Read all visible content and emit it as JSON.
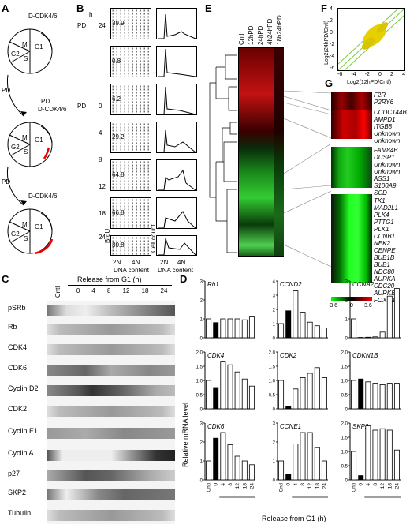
{
  "panels": {
    "A": "A",
    "B": "B",
    "C": "C",
    "D": "D",
    "E": "E",
    "F": "F",
    "G": "G"
  },
  "panelA": {
    "complex": "D-CDK4/6",
    "phases": [
      "M",
      "G1",
      "G2",
      "S"
    ],
    "drug": "PD"
  },
  "panelB": {
    "hour_unit": "h",
    "drug": "PD",
    "times": [
      "24",
      "0",
      "4",
      "8",
      "12",
      "18",
      "24"
    ],
    "percents": [
      "39.9",
      "0.8",
      "6.2",
      "29.2",
      "64.8",
      "66.8",
      "30.8"
    ],
    "xlabel": "DNA content",
    "ylabel_left": "BrdU",
    "ylabel_right": "Cell count",
    "ticks": [
      "2N",
      "4N"
    ]
  },
  "panelC": {
    "header": "Release from G1 (h)",
    "columns": [
      "Cntl",
      "0",
      "4",
      "8",
      "12",
      "18",
      "24"
    ],
    "rows": [
      "pSRb",
      "Rb",
      "CDK4",
      "CDK6",
      "Cyclin D2",
      "CDK2",
      "Cyclin E1",
      "Cyclin A",
      "p27",
      "SKP2",
      "Tubulin"
    ]
  },
  "panelD": {
    "ylabel": "Relative mRNA level",
    "xlabel": "Release from G1 (h)",
    "categories": [
      "Cntl",
      "0",
      "4",
      "8",
      "12",
      "18",
      "24"
    ],
    "genes": [
      {
        "name": "Rb1",
        "values": [
          1,
          0.8,
          1,
          1,
          1,
          0.95,
          1.1
        ],
        "ymax": 3,
        "ticks": [
          "0",
          "1",
          "2",
          "3"
        ]
      },
      {
        "name": "CCND2",
        "values": [
          1,
          1.9,
          3.3,
          1.8,
          1.1,
          0.85,
          0.7
        ],
        "ymax": 4,
        "ticks": [
          "0",
          "1",
          "2",
          "3",
          "4"
        ]
      },
      {
        "name": "CCNA2",
        "values": [
          1,
          0.02,
          0.03,
          0.05,
          0.3,
          2.2,
          2.6
        ],
        "ymax": 3,
        "ticks": [
          "0",
          "1",
          "2",
          "3"
        ]
      },
      {
        "name": "CDK4",
        "values": [
          1,
          0.75,
          1.65,
          1.55,
          1.3,
          1.05,
          0.8
        ],
        "ymax": 2,
        "ticks": [
          "0",
          "0.5",
          "1.0",
          "1.5",
          "2.0"
        ]
      },
      {
        "name": "CDK2",
        "values": [
          1,
          0.1,
          0.7,
          1.1,
          1.25,
          1.45,
          1.1
        ],
        "ymax": 2,
        "ticks": [
          "0",
          "0.5",
          "1.0",
          "1.5",
          "2.0"
        ]
      },
      {
        "name": "CDKN1B",
        "values": [
          1,
          1.05,
          0.95,
          0.9,
          0.85,
          0.9,
          0.9
        ],
        "ymax": 2,
        "ticks": [
          "0",
          "0.5",
          "1.0",
          "1.5",
          "2.0"
        ]
      },
      {
        "name": "CDK6",
        "values": [
          1,
          2.2,
          2.5,
          1.85,
          1.25,
          1.0,
          0.8
        ],
        "ymax": 3,
        "ticks": [
          "0",
          "1",
          "2",
          "3"
        ]
      },
      {
        "name": "CCNE1",
        "values": [
          1,
          0.3,
          1.9,
          2.5,
          2.5,
          1.7,
          1.0
        ],
        "ymax": 3,
        "ticks": [
          "0",
          "1",
          "2",
          "3"
        ]
      },
      {
        "name": "SKP2",
        "values": [
          1,
          0.15,
          1.9,
          1.75,
          1.8,
          1.75,
          1.05
        ],
        "ymax": 2,
        "ticks": [
          "0",
          "0.5",
          "1.0",
          "1.5",
          "2.0"
        ]
      }
    ]
  },
  "panelE": {
    "columns": [
      "Cntl",
      "12hPD",
      "24hPD",
      "4h24hPD",
      "18h24hPD"
    ]
  },
  "panelF": {
    "ylabel": "Log2(24hPD/Cntl)",
    "xlabel": "Log2(12hPD/Cntl)",
    "xticks": [
      "-6",
      "-4",
      "-2",
      "0",
      "2",
      "4"
    ],
    "yticks": [
      "4",
      "2",
      "0",
      "-2",
      "-4",
      "-6"
    ]
  },
  "panelG": {
    "genes": [
      "F2R",
      "P2RY6",
      "CCDC144B",
      "AMPD1",
      "ITGB8",
      "Unknown",
      "Unknown",
      "FAM84B",
      "DUSP1",
      "Unknown",
      "Unknown",
      "ASS1",
      "S100A9",
      "SCD",
      "TK1",
      "MAD2L1",
      "PLK4",
      "PTTG1",
      "PLK1",
      "CCNB1",
      "NEK2",
      "CENPE",
      "BUB1B",
      "BUB1",
      "NDC80",
      "AURKA",
      "CDC20",
      "AURKB",
      "FOXM1"
    ],
    "scale": [
      "-3.6",
      "0",
      "3.6"
    ],
    "colors": {
      "low": "#00ff00",
      "mid": "#000000",
      "high": "#ff0000"
    }
  }
}
